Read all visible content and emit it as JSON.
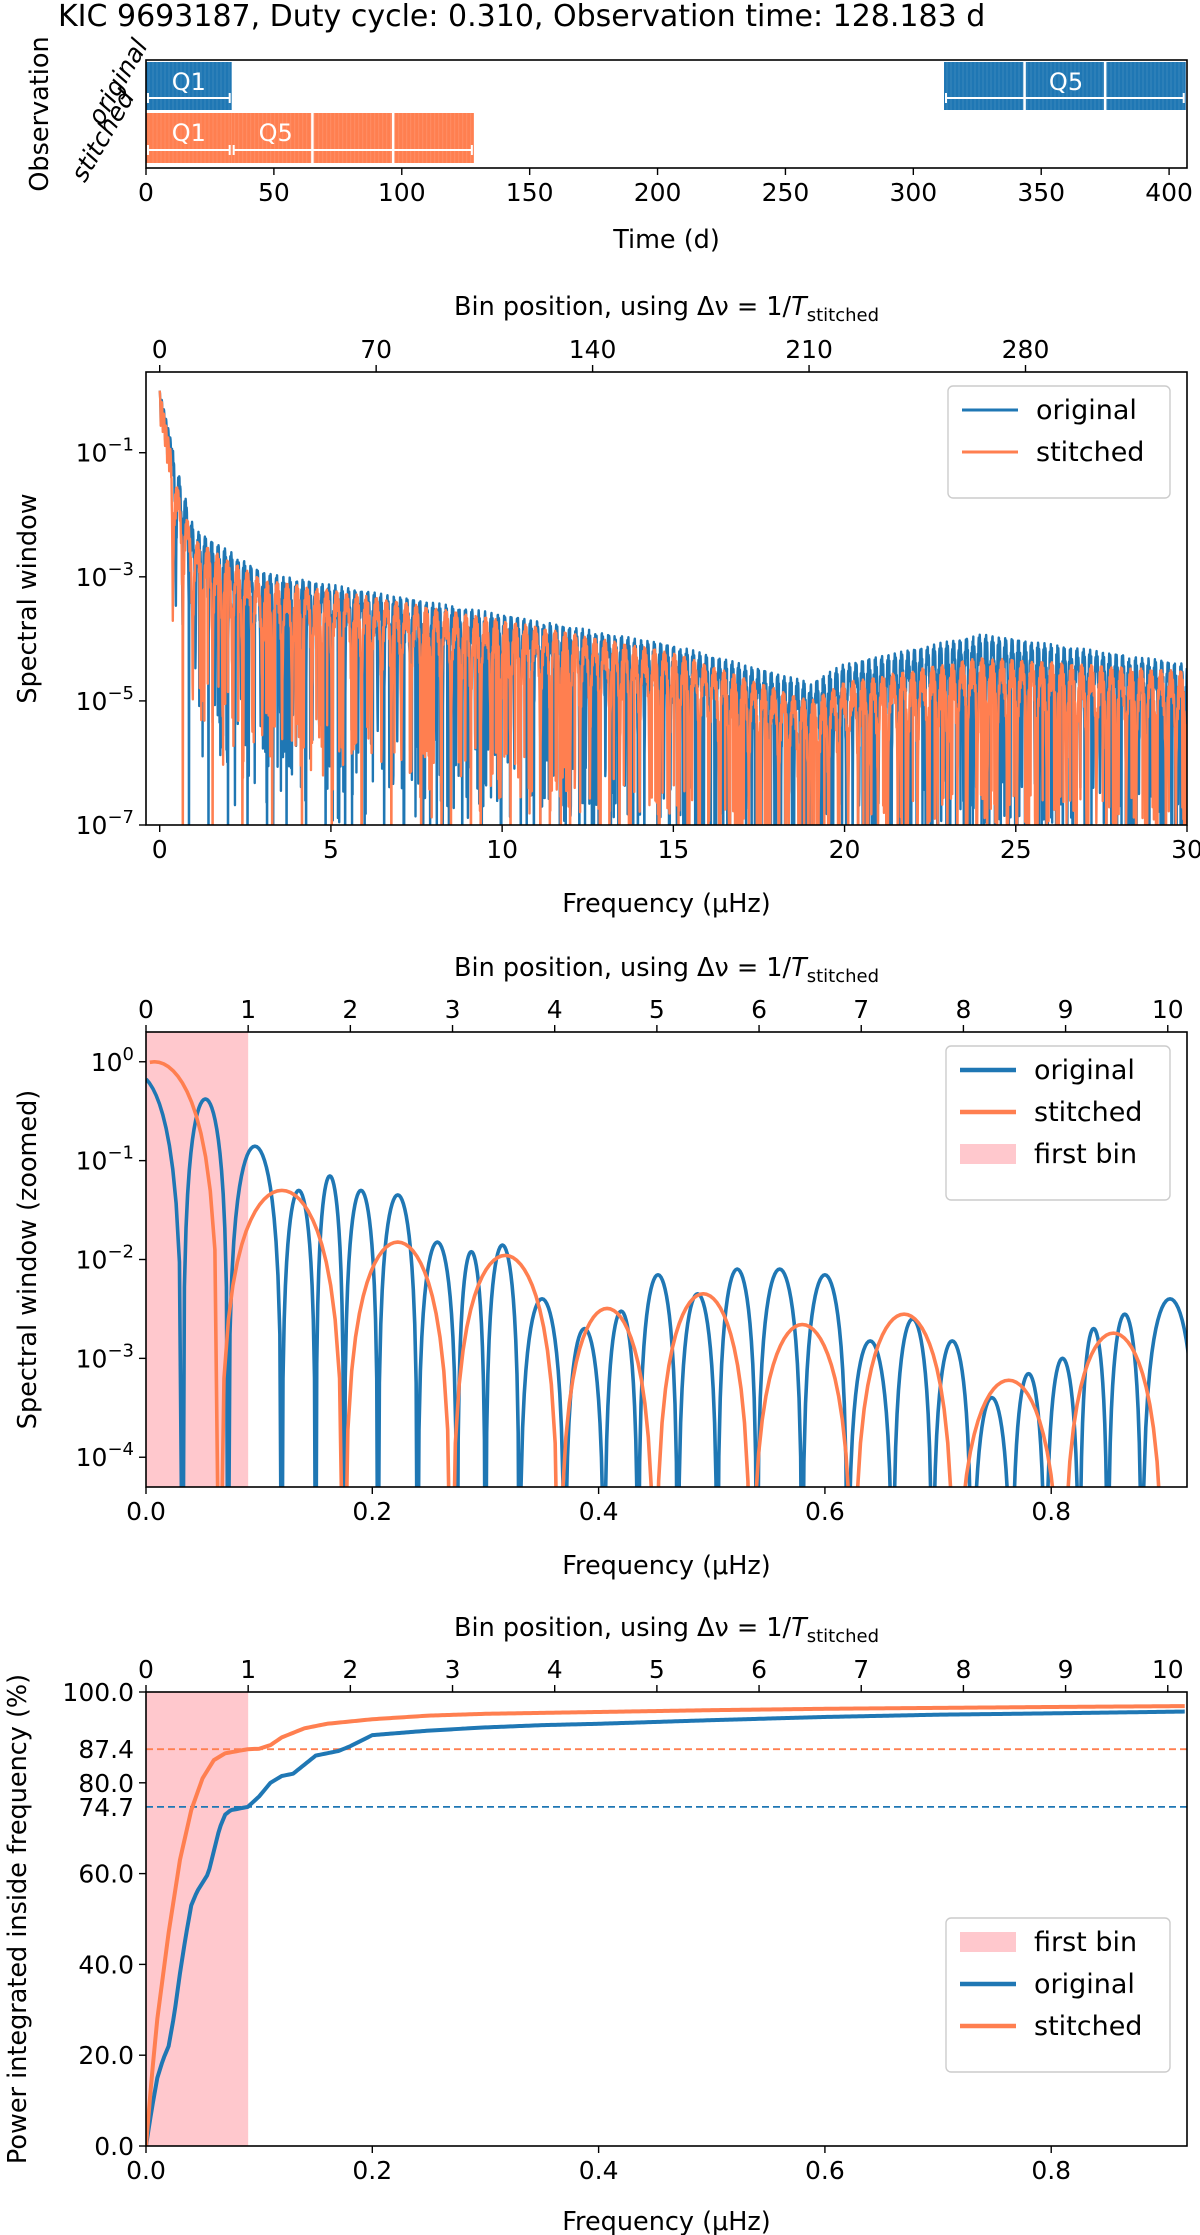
{
  "figure_title": "KIC 9693187, Duty cycle: 0.310, Observation time: 128.183 d",
  "colors": {
    "original": "#1f77b4",
    "stitched": "#ff7f50",
    "first_bin": "#ffc8cd"
  },
  "chart_data": [
    {
      "type": "timeline",
      "ylabel": "Observation",
      "xlabel": "Time (d)",
      "xlim": [
        0,
        407
      ],
      "xticks": [
        "0",
        "50",
        "100",
        "150",
        "200",
        "250",
        "300",
        "350",
        "400"
      ],
      "rows": [
        {
          "name": "original",
          "color": "#1f77b4",
          "segments": [
            {
              "start": 0,
              "end": 33.5,
              "label": "Q1"
            },
            {
              "start": 312,
              "end": 406.5,
              "label": "Q5"
            }
          ]
        },
        {
          "name": "stitched",
          "color": "#ff7f50",
          "segments": [
            {
              "start": 0,
              "end": 33.5,
              "label": "Q1"
            },
            {
              "start": 33.5,
              "end": 128.183,
              "label": "Q5"
            }
          ]
        }
      ]
    },
    {
      "type": "line",
      "ylabel": "Spectral window",
      "xlabel": "Frequency (μHz)",
      "top_xlabel": "Bin position, using Δν = 1/T_stitched",
      "yscale": "log",
      "xlim": [
        -0.4,
        30
      ],
      "ylim": [
        1e-07,
        2
      ],
      "xticks": [
        "0",
        "5",
        "10",
        "15",
        "20",
        "25",
        "30"
      ],
      "yticks": [
        "10^-1",
        "10^-3",
        "10^-5",
        "10^-7"
      ],
      "top_xticks": [
        "0",
        "70",
        "140",
        "210",
        "280"
      ],
      "legend_position": "upper right",
      "series": [
        {
          "name": "original",
          "envelope_hi": [
            [
              0,
              1.0
            ],
            [
              0.5,
              0.06
            ],
            [
              1,
              0.006
            ],
            [
              3,
              0.0012
            ],
            [
              6,
              0.0006
            ],
            [
              10,
              0.00025
            ],
            [
              15,
              8e-05
            ],
            [
              19,
              2e-05
            ],
            [
              20,
              4e-05
            ],
            [
              24,
              0.00012
            ],
            [
              30,
              4e-05
            ]
          ]
        },
        {
          "name": "stitched",
          "envelope_hi": [
            [
              0,
              1.0
            ],
            [
              0.5,
              0.03
            ],
            [
              1,
              0.004
            ],
            [
              3,
              0.0009
            ],
            [
              6,
              0.0005
            ],
            [
              10,
              0.0002
            ],
            [
              15,
              6e-05
            ],
            [
              19,
              1e-05
            ],
            [
              20,
              2e-05
            ],
            [
              24,
              5e-05
            ],
            [
              30,
              3e-05
            ]
          ]
        }
      ]
    },
    {
      "type": "line",
      "ylabel": "Spectral window (zoomed)",
      "xlabel": "Frequency (μHz)",
      "top_xlabel": "Bin position, using Δν = 1/T_stitched",
      "yscale": "log",
      "xlim": [
        0,
        0.92
      ],
      "ylim": [
        5e-05,
        2
      ],
      "xticks": [
        "0.0",
        "0.2",
        "0.4",
        "0.6",
        "0.8"
      ],
      "yticks": [
        "10^0",
        "10^-1",
        "10^-2",
        "10^-3",
        "10^-4"
      ],
      "top_xticks": [
        "0",
        "1",
        "2",
        "3",
        "4",
        "5",
        "6",
        "7",
        "8",
        "9",
        "10"
      ],
      "first_bin": [
        0,
        0.0903
      ],
      "legend_position": "upper right",
      "legend": [
        "original",
        "stitched",
        "first bin"
      ],
      "series": [
        {
          "name": "original",
          "lobe_peaks": [
            [
              0.02,
              0.75
            ],
            [
              0.045,
              0.42
            ],
            [
              0.1,
              0.14
            ],
            [
              0.14,
              0.05
            ],
            [
              0.16,
              0.07
            ],
            [
              0.19,
              0.05
            ],
            [
              0.22,
              0.045
            ],
            [
              0.26,
              0.015
            ],
            [
              0.29,
              0.012
            ],
            [
              0.31,
              0.014
            ],
            [
              0.35,
              0.004
            ],
            [
              0.39,
              0.002
            ],
            [
              0.42,
              0.003
            ],
            [
              0.45,
              0.007
            ],
            [
              0.49,
              0.0045
            ],
            [
              0.52,
              0.008
            ],
            [
              0.56,
              0.008
            ],
            [
              0.6,
              0.007
            ],
            [
              0.64,
              0.0015
            ],
            [
              0.68,
              0.0025
            ],
            [
              0.71,
              0.0015
            ],
            [
              0.75,
              0.0004
            ],
            [
              0.78,
              0.0007
            ],
            [
              0.81,
              0.001
            ],
            [
              0.84,
              0.002
            ],
            [
              0.86,
              0.0028
            ],
            [
              0.9,
              0.004
            ]
          ]
        },
        {
          "name": "stitched",
          "lobe_peaks": [
            [
              0,
              1.0
            ],
            [
              0.13,
              0.05
            ],
            [
              0.22,
              0.015
            ],
            [
              0.32,
              0.011
            ],
            [
              0.41,
              0.0032
            ],
            [
              0.49,
              0.0045
            ],
            [
              0.58,
              0.0022
            ],
            [
              0.67,
              0.0028
            ],
            [
              0.76,
              0.0006
            ],
            [
              0.86,
              0.0018
            ]
          ]
        }
      ]
    },
    {
      "type": "line",
      "ylabel": "Power integrated inside frequency (%)",
      "xlabel": "Frequency (μHz)",
      "top_xlabel": "Bin position, using Δν = 1/T_stitched",
      "xlim": [
        0,
        0.92
      ],
      "ylim": [
        0,
        100
      ],
      "xticks": [
        "0.0",
        "0.2",
        "0.4",
        "0.6",
        "0.8"
      ],
      "yticks": [
        "0.0",
        "20.0",
        "40.0",
        "60.0",
        "80.0",
        "100.0"
      ],
      "top_xticks": [
        "0",
        "1",
        "2",
        "3",
        "4",
        "5",
        "6",
        "7",
        "8",
        "9",
        "10"
      ],
      "first_bin": [
        0,
        0.0903
      ],
      "legend_position": "center right",
      "legend": [
        "first bin",
        "original",
        "stitched"
      ],
      "reference_lines": [
        {
          "name": "stitched",
          "value": 87.4,
          "label": "87.4"
        },
        {
          "name": "original",
          "value": 74.7,
          "label": "74.7"
        }
      ],
      "series": [
        {
          "name": "original",
          "points": [
            [
              0,
              0
            ],
            [
              0.005,
              8
            ],
            [
              0.01,
              15
            ],
            [
              0.015,
              19
            ],
            [
              0.02,
              22
            ],
            [
              0.025,
              29
            ],
            [
              0.03,
              38
            ],
            [
              0.035,
              46
            ],
            [
              0.04,
              53
            ],
            [
              0.045,
              56
            ],
            [
              0.05,
              58
            ],
            [
              0.055,
              60
            ],
            [
              0.06,
              65
            ],
            [
              0.065,
              70
            ],
            [
              0.07,
              73
            ],
            [
              0.075,
              74
            ],
            [
              0.08,
              74.2
            ],
            [
              0.09,
              74.7
            ],
            [
              0.1,
              77
            ],
            [
              0.11,
              80
            ],
            [
              0.12,
              81.5
            ],
            [
              0.13,
              82
            ],
            [
              0.14,
              84
            ],
            [
              0.15,
              86
            ],
            [
              0.16,
              86.5
            ],
            [
              0.17,
              87
            ],
            [
              0.18,
              88
            ],
            [
              0.2,
              90.5
            ],
            [
              0.25,
              91.5
            ],
            [
              0.3,
              92.2
            ],
            [
              0.35,
              92.7
            ],
            [
              0.4,
              93
            ],
            [
              0.5,
              93.8
            ],
            [
              0.6,
              94.5
            ],
            [
              0.7,
              95
            ],
            [
              0.8,
              95.3
            ],
            [
              0.92,
              95.7
            ]
          ]
        },
        {
          "name": "stitched",
          "points": [
            [
              0,
              0
            ],
            [
              0.005,
              15
            ],
            [
              0.01,
              28
            ],
            [
              0.02,
              47
            ],
            [
              0.03,
              63
            ],
            [
              0.04,
              74
            ],
            [
              0.05,
              81
            ],
            [
              0.06,
              85
            ],
            [
              0.07,
              86.5
            ],
            [
              0.09,
              87.4
            ],
            [
              0.1,
              87.5
            ],
            [
              0.11,
              88.3
            ],
            [
              0.12,
              90
            ],
            [
              0.14,
              92
            ],
            [
              0.16,
              93
            ],
            [
              0.18,
              93.5
            ],
            [
              0.2,
              94
            ],
            [
              0.25,
              94.8
            ],
            [
              0.3,
              95.2
            ],
            [
              0.4,
              95.6
            ],
            [
              0.5,
              96
            ],
            [
              0.6,
              96.3
            ],
            [
              0.7,
              96.5
            ],
            [
              0.8,
              96.7
            ],
            [
              0.92,
              96.9
            ]
          ]
        }
      ]
    }
  ]
}
